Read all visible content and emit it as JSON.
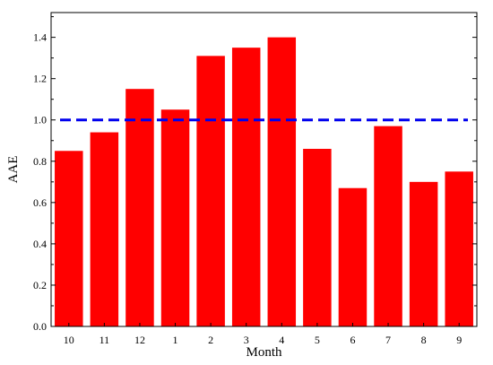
{
  "chart_data": {
    "type": "bar",
    "title": "",
    "xlabel": "Month",
    "ylabel": "AAE",
    "categories": [
      "10",
      "11",
      "12",
      "1",
      "2",
      "3",
      "4",
      "5",
      "6",
      "7",
      "8",
      "9"
    ],
    "values": [
      0.85,
      0.94,
      1.15,
      1.05,
      1.31,
      1.35,
      1.4,
      0.86,
      0.67,
      0.97,
      0.7,
      0.75
    ],
    "ylim": [
      0,
      1.52
    ],
    "yticks": [
      "0.0",
      "0.2",
      "0.4",
      "0.6",
      "0.8",
      "1.0",
      "1.2",
      "1.4"
    ],
    "bar_color": "#ff0000",
    "reference_line": {
      "value": 1.0,
      "color": "#0000ee",
      "style": "dashed"
    },
    "grid": false,
    "legend": "none"
  }
}
